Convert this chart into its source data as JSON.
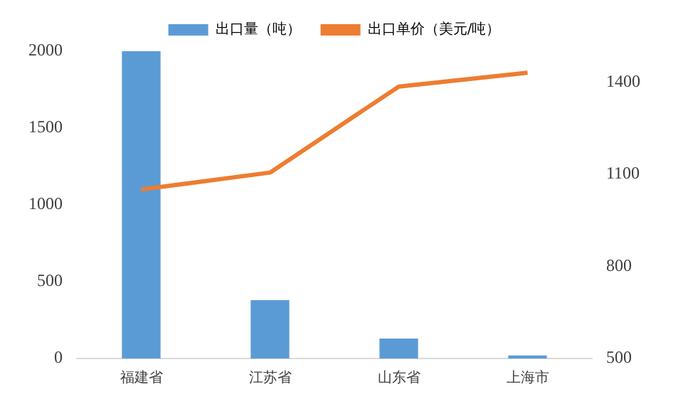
{
  "chart_data": {
    "type": "bar",
    "categories": [
      "福建省",
      "江苏省",
      "山东省",
      "上海市"
    ],
    "series": [
      {
        "name": "出口量（吨）",
        "color": "#5b9bd5",
        "values": [
          2000,
          380,
          130,
          20
        ]
      },
      {
        "name": "出口单价（美元/吨）",
        "type": "line",
        "axis": "y2",
        "color": "#ed7d31",
        "values": [
          1050,
          1105,
          1385,
          1430
        ]
      }
    ],
    "ylim": [
      0,
      2000
    ],
    "yticks": [
      0,
      500,
      1000,
      1500,
      2000
    ],
    "y2lim": [
      500,
      1500
    ],
    "y2ticks": [
      500,
      800,
      1100,
      1400
    ],
    "grid": false,
    "legend": "top",
    "marker": "none"
  }
}
